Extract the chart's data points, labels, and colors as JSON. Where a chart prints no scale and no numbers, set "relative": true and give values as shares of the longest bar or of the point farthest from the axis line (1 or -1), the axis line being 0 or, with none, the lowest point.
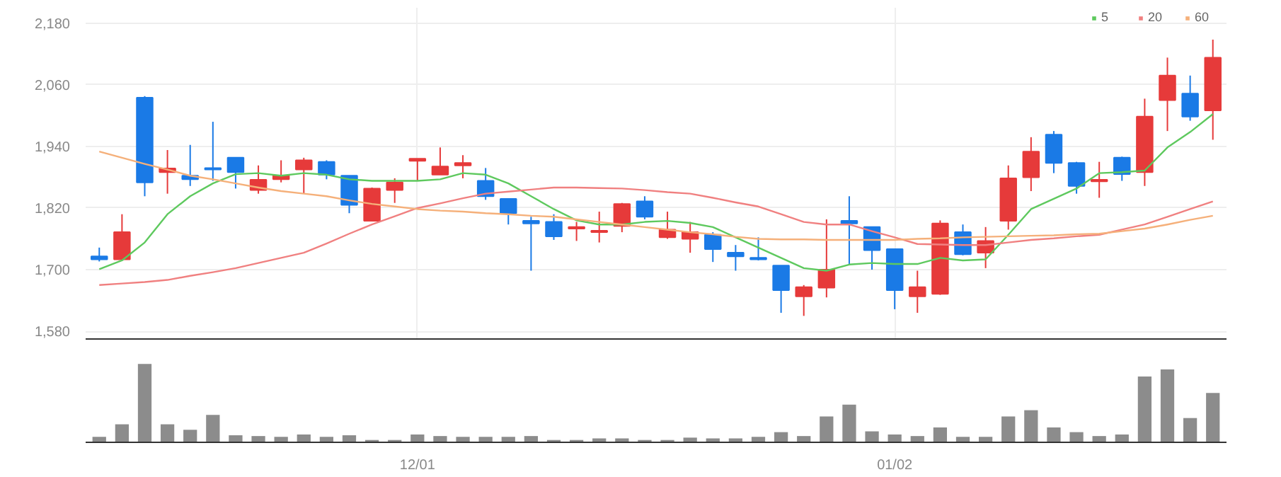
{
  "chart_data": [
    {
      "type": "candlestick",
      "categories": [
        null,
        null,
        null,
        null,
        null,
        null,
        null,
        null,
        null,
        null,
        null,
        null,
        null,
        null,
        null,
        null,
        null,
        null,
        null,
        null,
        null,
        null,
        null,
        null,
        null,
        null,
        null,
        null,
        null,
        null,
        null,
        null,
        null,
        null,
        null,
        null,
        null,
        null,
        null,
        null,
        null,
        null,
        null,
        null,
        null,
        null,
        null,
        null,
        null,
        null
      ],
      "ohlc": [
        [
          1726,
          1743,
          1716,
          1720
        ],
        [
          1720,
          1808,
          1720,
          1773
        ],
        [
          2035,
          2038,
          1843,
          1870
        ],
        [
          1890,
          1933,
          1848,
          1897
        ],
        [
          1883,
          1943,
          1863,
          1876
        ],
        [
          1898,
          1988,
          1873,
          1895
        ],
        [
          1918,
          1918,
          1858,
          1890
        ],
        [
          1855,
          1903,
          1848,
          1875
        ],
        [
          1876,
          1913,
          1870,
          1883
        ],
        [
          1895,
          1918,
          1848,
          1913
        ],
        [
          1910,
          1913,
          1876,
          1885
        ],
        [
          1883,
          1883,
          1810,
          1826
        ],
        [
          1795,
          1860,
          1795,
          1858
        ],
        [
          1855,
          1878,
          1830,
          1870
        ],
        [
          1912,
          1916,
          1873,
          1916
        ],
        [
          1885,
          1938,
          1885,
          1901
        ],
        [
          1903,
          1923,
          1878,
          1908
        ],
        [
          1873,
          1898,
          1836,
          1843
        ],
        [
          1838,
          1838,
          1788,
          1810
        ],
        [
          1795,
          1803,
          1698,
          1790
        ],
        [
          1793,
          1808,
          1758,
          1765
        ],
        [
          1780,
          1793,
          1756,
          1783
        ],
        [
          1773,
          1813,
          1753,
          1776
        ],
        [
          1785,
          1830,
          1773,
          1828
        ],
        [
          1833,
          1843,
          1798,
          1803
        ],
        [
          1763,
          1813,
          1760,
          1778
        ],
        [
          1760,
          1793,
          1733,
          1773
        ],
        [
          1768,
          1773,
          1715,
          1740
        ],
        [
          1733,
          1748,
          1698,
          1726
        ],
        [
          1723,
          1763,
          1718,
          1720
        ],
        [
          1708,
          1708,
          1616,
          1660
        ],
        [
          1648,
          1670,
          1610,
          1666
        ],
        [
          1665,
          1798,
          1646,
          1700
        ],
        [
          1795,
          1843,
          1710,
          1790
        ],
        [
          1783,
          1783,
          1700,
          1738
        ],
        [
          1740,
          1740,
          1623,
          1660
        ],
        [
          1648,
          1698,
          1616,
          1666
        ],
        [
          1653,
          1796,
          1651,
          1790
        ],
        [
          1773,
          1788,
          1728,
          1730
        ],
        [
          1733,
          1783,
          1703,
          1756
        ],
        [
          1795,
          1903,
          1778,
          1878
        ],
        [
          1880,
          1958,
          1853,
          1930
        ],
        [
          1963,
          1970,
          1888,
          1908
        ],
        [
          1908,
          1910,
          1848,
          1863
        ],
        [
          1872,
          1910,
          1840,
          1875
        ],
        [
          1918,
          1920,
          1873,
          1886
        ],
        [
          1890,
          2033,
          1863,
          1998
        ],
        [
          2030,
          2113,
          1970,
          2078
        ],
        [
          2043,
          2078,
          1990,
          1998
        ],
        [
          2010,
          2148,
          1953,
          2113
        ]
      ],
      "colors": [
        "#1a7ae6",
        "#e63a3a",
        "#1a7ae6",
        "#e63a3a",
        "#1a7ae6",
        "#1a7ae6",
        "#1a7ae6",
        "#e63a3a",
        "#e63a3a",
        "#e63a3a",
        "#1a7ae6",
        "#1a7ae6",
        "#e63a3a",
        "#e63a3a",
        "#e63a3a",
        "#e63a3a",
        "#e63a3a",
        "#1a7ae6",
        "#1a7ae6",
        "#1a7ae6",
        "#1a7ae6",
        "#e63a3a",
        "#e63a3a",
        "#e63a3a",
        "#1a7ae6",
        "#e63a3a",
        "#e63a3a",
        "#1a7ae6",
        "#1a7ae6",
        "#1a7ae6",
        "#1a7ae6",
        "#e63a3a",
        "#e63a3a",
        "#1a7ae6",
        "#1a7ae6",
        "#1a7ae6",
        "#e63a3a",
        "#e63a3a",
        "#1a7ae6",
        "#e63a3a",
        "#e63a3a",
        "#e63a3a",
        "#1a7ae6",
        "#1a7ae6",
        "#e63a3a",
        "#1a7ae6",
        "#e63a3a",
        "#e63a3a",
        "#1a7ae6",
        "#e63a3a"
      ],
      "series": [
        {
          "name": "5",
          "type": "line",
          "color": "#5ec95e",
          "values": [
            1701,
            1718,
            1753,
            1808,
            1843,
            1868,
            1886,
            1888,
            1883,
            1888,
            1885,
            1876,
            1873,
            1873,
            1873,
            1876,
            1888,
            1885,
            1868,
            1843,
            1818,
            1796,
            1788,
            1788,
            1793,
            1795,
            1791,
            1783,
            1763,
            1743,
            1723,
            1703,
            1698,
            1710,
            1713,
            1711,
            1711,
            1723,
            1718,
            1720,
            1768,
            1818,
            1838,
            1858,
            1888,
            1890,
            1893,
            1938,
            1968,
            2003
          ]
        },
        {
          "name": "20",
          "type": "line",
          "color": "#f08080",
          "values": [
            1670,
            1673,
            1676,
            1680,
            1688,
            1695,
            1703,
            1713,
            1723,
            1733,
            1751,
            1770,
            1788,
            1804,
            1820,
            1829,
            1839,
            1848,
            1852,
            1856,
            1860,
            1860,
            1859,
            1858,
            1855,
            1851,
            1848,
            1840,
            1831,
            1823,
            1808,
            1793,
            1788,
            1788,
            1775,
            1763,
            1750,
            1749,
            1748,
            1748,
            1753,
            1758,
            1761,
            1765,
            1768,
            1778,
            1788,
            1803,
            1818,
            1833
          ]
        },
        {
          "name": "60",
          "type": "line",
          "color": "#f5b07a",
          "values": [
            1930,
            1918,
            1906,
            1895,
            1883,
            1876,
            1868,
            1860,
            1853,
            1848,
            1843,
            1835,
            1828,
            1823,
            1818,
            1815,
            1813,
            1810,
            1808,
            1805,
            1803,
            1798,
            1793,
            1788,
            1783,
            1778,
            1773,
            1769,
            1764,
            1760,
            1759,
            1759,
            1758,
            1758,
            1758,
            1758,
            1760,
            1761,
            1763,
            1764,
            1765,
            1766,
            1767,
            1769,
            1770,
            1775,
            1780,
            1788,
            1797,
            1805
          ]
        }
      ],
      "ylim": [
        1565,
        2210
      ],
      "yticks": [
        {
          "value": 1580,
          "label": "1,580"
        },
        {
          "value": 1700,
          "label": "1,700"
        },
        {
          "value": 1820,
          "label": "1,820"
        },
        {
          "value": 1940,
          "label": "1,940"
        },
        {
          "value": 2060,
          "label": "2,060"
        },
        {
          "value": 2180,
          "label": "2,180"
        }
      ],
      "tick_labels": "y",
      "grid": true,
      "legend": "top right"
    },
    {
      "type": "bar",
      "relative": true,
      "color": "#8c8c8c",
      "categories": [
        null,
        null,
        null,
        null,
        null,
        null,
        null,
        null,
        null,
        null,
        null,
        null,
        null,
        null,
        "12/01",
        null,
        null,
        null,
        null,
        null,
        null,
        null,
        null,
        null,
        null,
        null,
        null,
        null,
        null,
        null,
        null,
        null,
        null,
        null,
        null,
        "01/02",
        null,
        null,
        null,
        null,
        null,
        null,
        null,
        null,
        null,
        null,
        null,
        null,
        null,
        null
      ],
      "values": [
        0.07,
        0.23,
        1,
        0.23,
        0.16,
        0.35,
        0.09,
        0.08,
        0.07,
        0.1,
        0.07,
        0.09,
        0.03,
        0.03,
        0.1,
        0.08,
        0.07,
        0.07,
        0.07,
        0.08,
        0.03,
        0.03,
        0.05,
        0.05,
        0.03,
        0.03,
        0.06,
        0.05,
        0.05,
        0.07,
        0.13,
        0.08,
        0.33,
        0.48,
        0.14,
        0.1,
        0.08,
        0.19,
        0.07,
        0.07,
        0.33,
        0.41,
        0.19,
        0.13,
        0.08,
        0.1,
        0.84,
        0.93,
        0.31,
        0.63
      ],
      "tick_labels": "x"
    }
  ]
}
